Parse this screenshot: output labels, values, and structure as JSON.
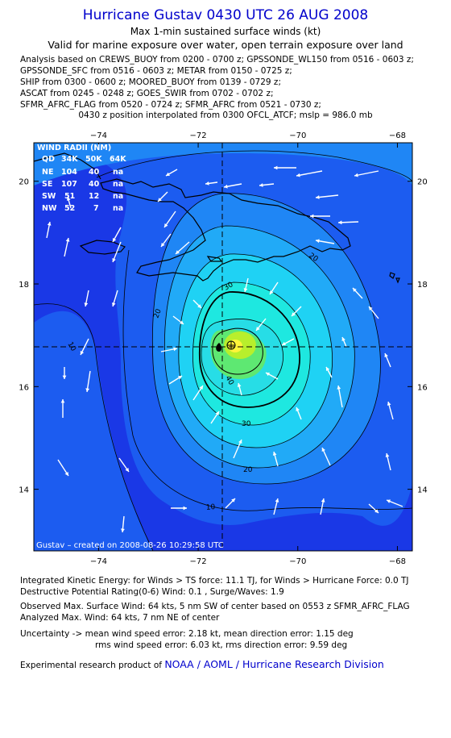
{
  "header": {
    "title": "Hurricane Gustav 0430 UTC 26 AUG 2008",
    "subtitle": "Max 1-min sustained surface winds (kt)",
    "validity": "Valid for marine exposure over water, open terrain exposure over land"
  },
  "analysis_lines": [
    "Analysis based on  CREWS_BUOY from 0200 - 0700 z;  GPSSONDE_WL150 from 0516 - 0603 z;",
    "GPSSONDE_SFC from 0516 - 0603 z;  METAR from 0150 - 0725 z;",
    "SHIP from 0300 - 0600 z;  MOORED_BUOY from 0139 - 0729 z;",
    "ASCAT from 0245 - 0248 z;  GOES_SWIR from 0702 - 0702 z;",
    "SFMR_AFRC_FLAG from 0520 - 0724 z;  SFMR_AFRC from 0521 - 0730 z;"
  ],
  "position_note": "0430 z position interpolated from 0300 OFCL_ATCF; mslp = 986.0 mb",
  "map": {
    "credit": "Gustav – created on 2008-08-26 10:29:58 UTC",
    "wind_radii_title": "WIND RADII (NM)",
    "wind_radii": {
      "header": [
        "QD",
        "34K",
        "50K",
        "64K"
      ],
      "rows": [
        [
          "NE",
          "104",
          "40",
          "na"
        ],
        [
          "SE",
          "107",
          "40",
          "na"
        ],
        [
          "SW",
          "51",
          "12",
          "na"
        ],
        [
          "NW",
          "52",
          "7",
          "na"
        ]
      ]
    },
    "contour_labels": [
      "10",
      "10",
      "20",
      "20",
      "20",
      "30",
      "30",
      "40"
    ]
  },
  "chart_data": {
    "type": "contour",
    "title": "Hurricane Gustav 0430 UTC 26 AUG 2008",
    "subtitle": "Max 1-min sustained surface winds (kt)",
    "x_ticks": [
      -74,
      -72,
      -70,
      -68
    ],
    "y_ticks": [
      14,
      16,
      18,
      20
    ],
    "x_tick_labels": [
      "−74",
      "−72",
      "−70",
      "−68"
    ],
    "y_tick_labels": [
      "14",
      "16",
      "18",
      "20"
    ],
    "xlim": [
      -75.3,
      -67.7
    ],
    "ylim": [
      12.8,
      20.75
    ],
    "center": {
      "lon": -71.5,
      "lat": 16.7
    },
    "contour_levels_kt": [
      10,
      20,
      30,
      40,
      50,
      60
    ],
    "colors": [
      "#1a38e6",
      "#1c5cf0",
      "#1f86f5",
      "#21aaf7",
      "#1fd2f4",
      "#1ee8e0",
      "#5ee872",
      "#b8ef2c",
      "#fff43a"
    ]
  },
  "footer": {
    "ike": "Integrated Kinetic Energy:  for Winds > TS force: 11.1 TJ,  for Winds > Hurricane Force: 0.0 TJ",
    "dpr": "Destructive Potential Rating(0-6)   Wind: 0.1 , Surge/Waves: 1.9",
    "observed": "Observed Max. Surface Wind: 64 kts, 5 nm SW of center based on 0553 z SFMR_AFRC_FLAG",
    "analyzed": "Analyzed Max. Wind: 64 kts, 7 nm NE of center",
    "uncert1": "Uncertainty -> mean wind speed error: 2.18 kt,   mean direction error: 1.15 deg",
    "uncert2": "rms wind speed error: 6.03 kt,   rms direction error: 9.59 deg",
    "product_prefix": "Experimental research product of",
    "product_org": "NOAA / AOML / Hurricane Research Division"
  }
}
